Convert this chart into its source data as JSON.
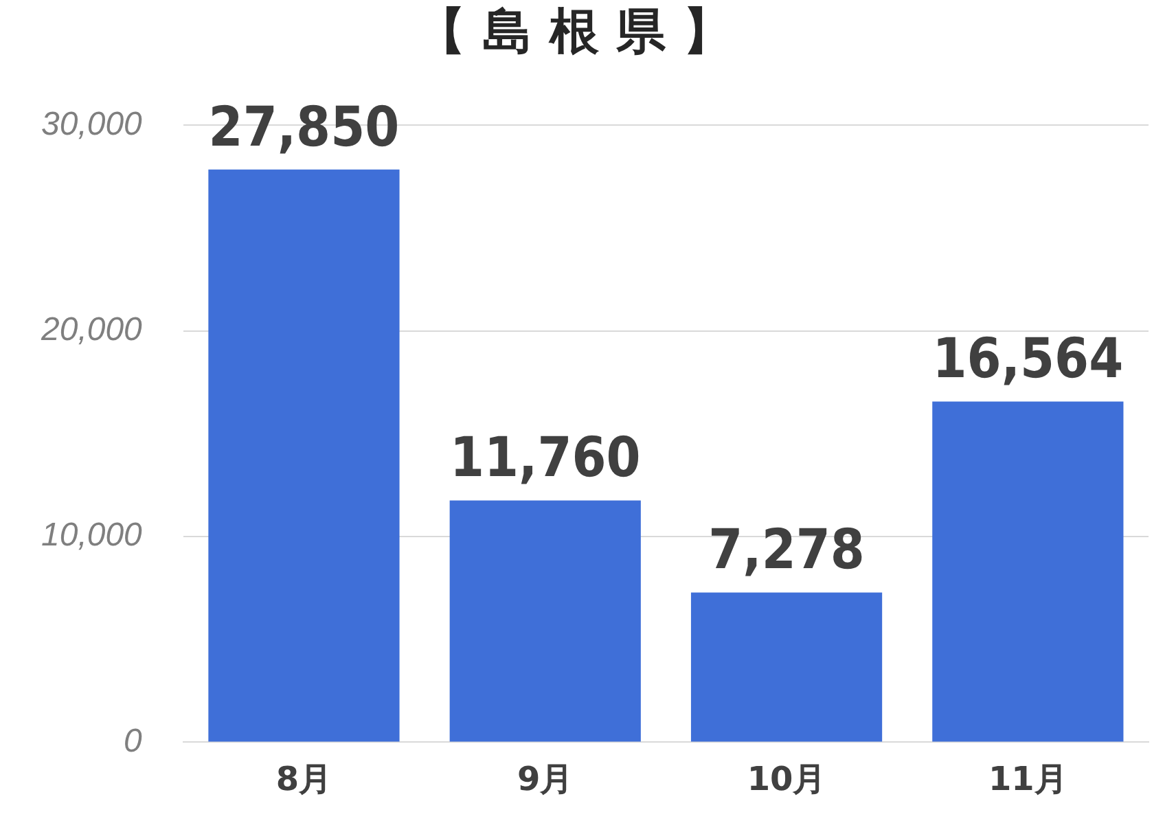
{
  "chart_data": {
    "type": "bar",
    "title": "【 島 根 県 】",
    "categories": [
      "8月",
      "9月",
      "10月",
      "11月"
    ],
    "values": [
      27850,
      11760,
      7278,
      16564
    ],
    "value_labels": [
      "27,850",
      "11,760",
      "7,278",
      "16,564"
    ],
    "color": "#3f6fd8",
    "ylim": [
      0,
      30000
    ],
    "yticks": [
      0,
      {
        "value": 10000,
        "label": "10,000"
      },
      {
        "value": 20000,
        "label": "20,000"
      },
      {
        "value": 30000,
        "label": "30,000"
      }
    ],
    "grid": "y"
  }
}
